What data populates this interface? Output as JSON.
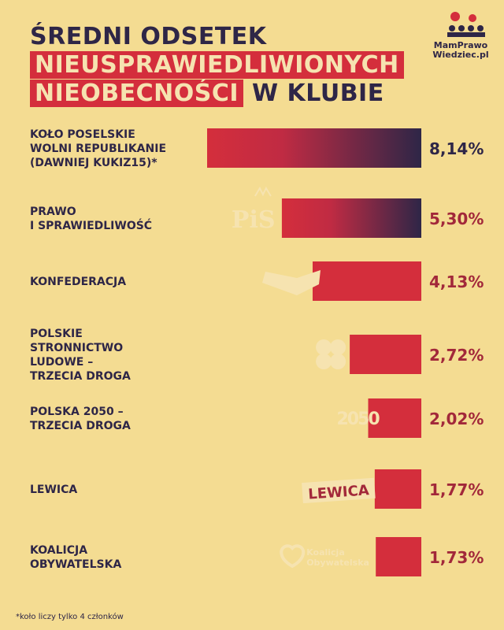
{
  "header": {
    "title_line1": "ŚREDNI ODSETEK",
    "title_line2": "NIEUSPRAWIEDLIWIONYCH",
    "title_line3_highlight": "NIEOBECNOŚCI",
    "title_line3_rest": "W KLUBIE"
  },
  "brand": {
    "line1": "MamPrawo",
    "line2": "Wiedziec.pl"
  },
  "footnote": "*koło liczy tylko 4 członków",
  "colors": {
    "background": "#f4dc92",
    "bar": "#d42e3c",
    "bar_dark": "#2e2647",
    "text": "#2e2647",
    "value_text": "#a2283a"
  },
  "chart_data": {
    "type": "bar",
    "orientation": "horizontal",
    "title": "ŚREDNI ODSETEK NIEUSPRAWIEDLIWIONYCH NIEOBECNOŚCI W KLUBIE",
    "xlabel": "",
    "ylabel": "",
    "xlim": [
      0,
      8.14
    ],
    "categories": [
      [
        "KOŁO POSELSKIE",
        "WOLNI REPUBLIKANIE",
        "(DAWNIEJ KUKIZ15)*"
      ],
      [
        "PRAWO",
        "I SPRAWIEDLIWOŚĆ"
      ],
      [
        "KONFEDERACJA"
      ],
      [
        "POLSKIE",
        "STRONNICTWO",
        "LUDOWE –",
        "TRZECIA DROGA"
      ],
      [
        "POLSKA 2050 –",
        "TRZECIA DROGA"
      ],
      [
        "LEWICA"
      ],
      [
        "KOALICJA",
        "OBYWATELSKA"
      ]
    ],
    "values": [
      8.14,
      5.3,
      4.13,
      2.72,
      2.02,
      1.77,
      1.73
    ],
    "value_labels": [
      "8,14%",
      "5,30%",
      "4,13%",
      "2,72%",
      "2,02%",
      "1,77%",
      "1,73%"
    ],
    "party_logo_text": [
      "",
      "PiS",
      "",
      "",
      "2050",
      "LEWICA",
      "Koalicja Obywatelska"
    ]
  }
}
